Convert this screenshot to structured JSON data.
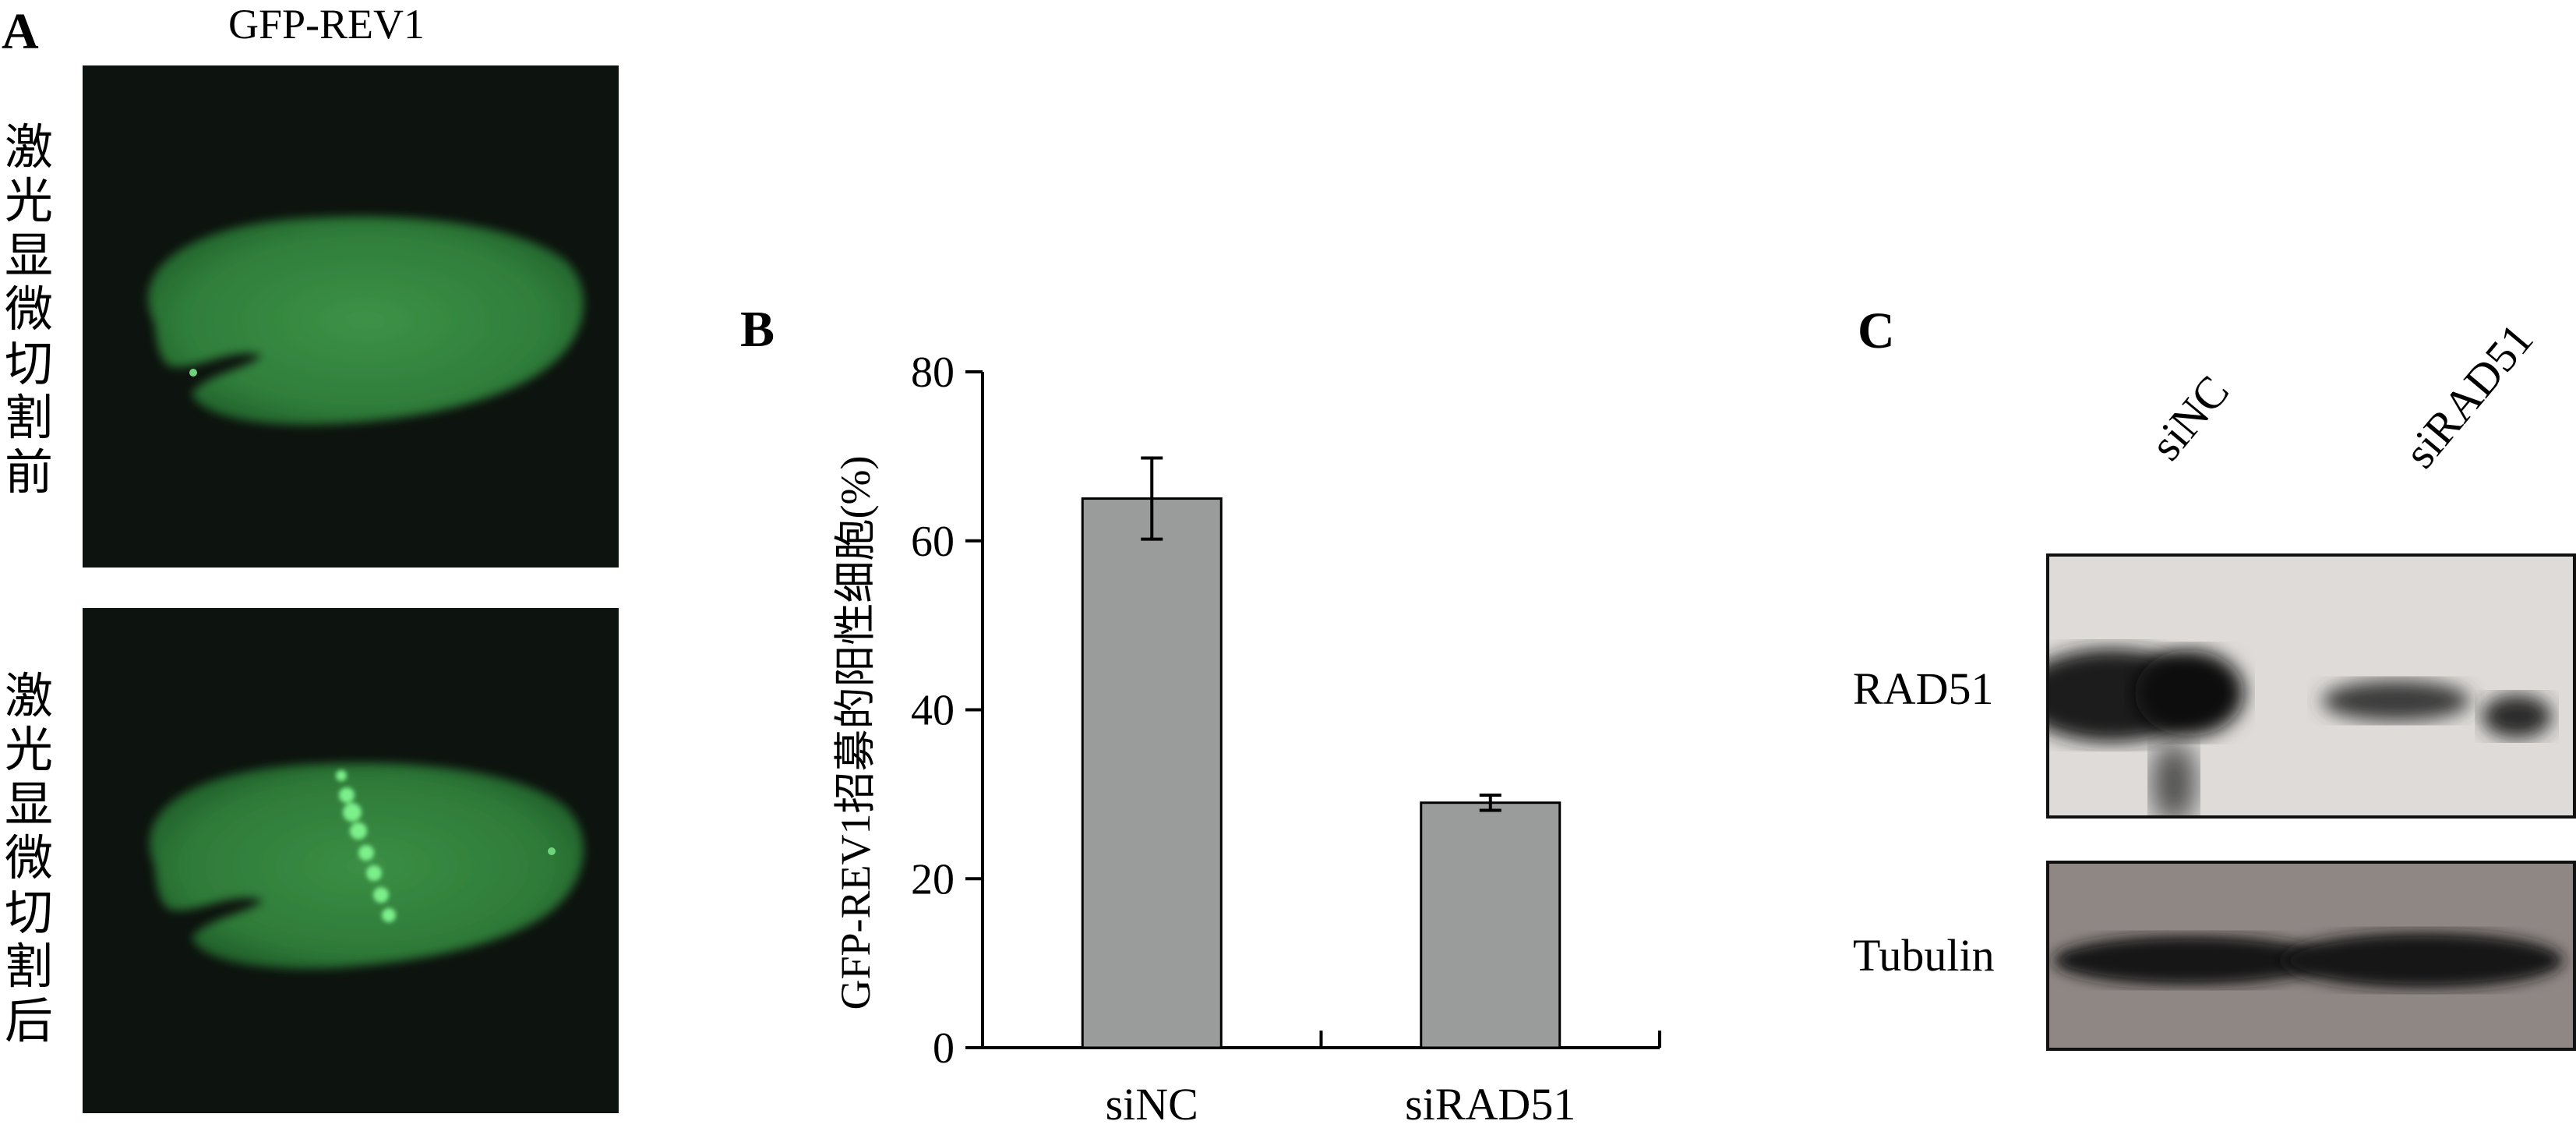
{
  "panel_a": {
    "letter": "A",
    "title": "GFP-REV1",
    "label_before": "激光显微切割前",
    "label_after": "激光显微切割后"
  },
  "panel_b": {
    "letter": "B"
  },
  "panel_c": {
    "letter": "C",
    "lanes": [
      "siNC",
      "siRAD51"
    ],
    "rows": [
      "RAD51",
      "Tubulin"
    ]
  },
  "chart_data": {
    "type": "bar",
    "categories": [
      "siNC",
      "siRAD51"
    ],
    "values": [
      65,
      29
    ],
    "error": [
      4.8,
      0.9
    ],
    "title": "",
    "xlabel": "",
    "ylabel": "GFP-REV1招募的阳性细胞(%)",
    "ylim": [
      0,
      80
    ],
    "yticks": [
      0,
      20,
      40,
      60,
      80
    ],
    "bar_color": "#9a9c9b",
    "grid": false
  }
}
